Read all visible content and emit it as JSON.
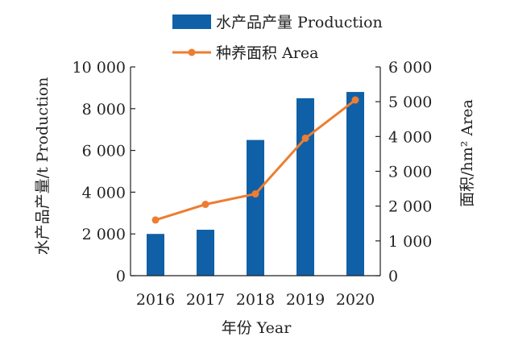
{
  "chart_data": {
    "type": "bar",
    "categories": [
      "2016",
      "2017",
      "2018",
      "2019",
      "2020"
    ],
    "series": [
      {
        "name": "水产品产量 Production",
        "type": "bar",
        "axis": "left",
        "color": "#1060a8",
        "values": [
          2000,
          2200,
          6500,
          8500,
          8800
        ]
      },
      {
        "name": "种养面积 Area",
        "type": "line",
        "axis": "right",
        "color": "#ed7d31",
        "values": [
          1600,
          2050,
          2350,
          3950,
          5050
        ]
      }
    ],
    "xlabel": "年份 Year",
    "ylabel": "水产品产量/t Production",
    "y2label": "面积/hm² Area",
    "ylim": [
      0,
      10000
    ],
    "y2lim": [
      0,
      6000
    ],
    "yticks": [
      0,
      2000,
      4000,
      6000,
      8000,
      10000
    ],
    "yticklabels": [
      "0",
      "2 000",
      "4 000",
      "6 000",
      "8 000",
      "10 000"
    ],
    "y2ticks": [
      0,
      1000,
      2000,
      3000,
      4000,
      5000,
      6000
    ],
    "y2ticklabels": [
      "0",
      "1 000",
      "2 000",
      "3 000",
      "4 000",
      "5 000",
      "6 000"
    ],
    "grid": false,
    "legend": "top"
  }
}
